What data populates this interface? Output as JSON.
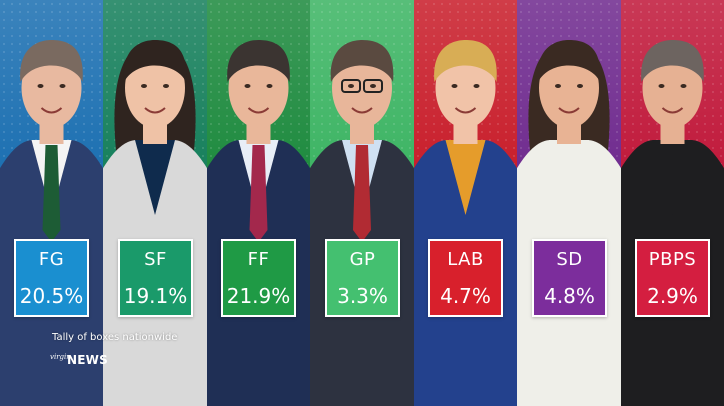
{
  "chart_data": {
    "type": "bar",
    "categories": [
      "FG",
      "SF",
      "FF",
      "GP",
      "LAB",
      "SD",
      "PBPS"
    ],
    "values": [
      20.5,
      19.1,
      21.9,
      3.3,
      4.7,
      4.8,
      2.9
    ],
    "value_labels": [
      "20.5%",
      "19.1%",
      "21.9%",
      "3.3%",
      "4.7%",
      "4.8%",
      "2.9%"
    ],
    "unit": "%",
    "colors": [
      "#1a8fd0",
      "#1a9a6a",
      "#1f9a45",
      "#44c070",
      "#d8202c",
      "#7c2d9c",
      "#d41e40"
    ],
    "column_colors": [
      "#1b6fb1",
      "#157f5b",
      "#1d8a3e",
      "#3cb463",
      "#c81d2a",
      "#6f2a8e",
      "#c0183a"
    ],
    "caption": "Tally of boxes nationwide"
  },
  "branding": {
    "logo_script": "virgin",
    "logo_word": "NEWS"
  }
}
